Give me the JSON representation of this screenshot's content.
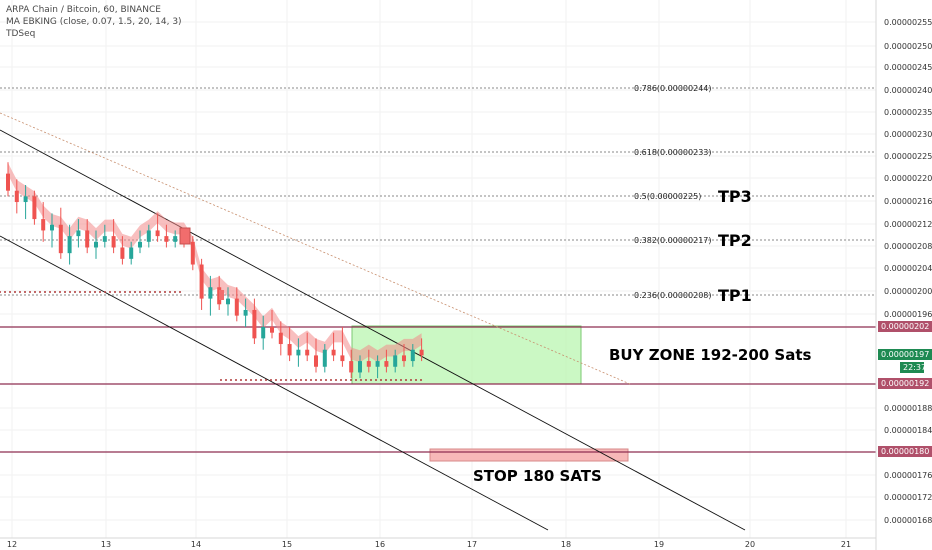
{
  "header": {
    "symbol_line": "ARPA Chain / Bitcoin, 60, BINANCE",
    "indicator_line": "MA EBKING (close, 0.07, 1.5, 20, 14, 3)",
    "tdseq_line": "TDSeq"
  },
  "chart_data": {
    "type": "candlestick",
    "x_ticks": [
      "12",
      "13",
      "14",
      "15",
      "16",
      "17",
      "18",
      "19",
      "20",
      "21"
    ],
    "y_ticks": [
      "0.00000255",
      "0.00000250",
      "0.00000245",
      "0.00000240",
      "0.00000235",
      "0.00000230",
      "0.00000225",
      "0.00000220",
      "0.00000216",
      "0.00000212",
      "0.00000208",
      "0.00000204",
      "0.00000200",
      "0.00000196",
      "0.00000188",
      "0.00000184",
      "0.00000176",
      "0.00000172",
      "0.00000168"
    ],
    "price_badges": [
      {
        "label": "0.00000202",
        "color": "#b0506a"
      },
      {
        "label": "0.00000197",
        "color": "#1e8a52"
      },
      {
        "label": "22:37",
        "color": "#1e8a52"
      },
      {
        "label": "0.00000192",
        "color": "#b0506a"
      },
      {
        "label": "0.00000180",
        "color": "#b0506a"
      }
    ],
    "fib_levels": [
      {
        "label": "0.786(0.00000244)"
      },
      {
        "label": "0.618(0.00000233)"
      },
      {
        "label": "0.5(0.00000225)"
      },
      {
        "label": "0.382(0.00000217)"
      },
      {
        "label": "0.236(0.00000208)"
      }
    ],
    "candles": [
      {
        "o": 229,
        "h": 231,
        "l": 225,
        "c": 226
      },
      {
        "o": 226,
        "h": 228,
        "l": 222,
        "c": 224
      },
      {
        "o": 224,
        "h": 227,
        "l": 221,
        "c": 225
      },
      {
        "o": 225,
        "h": 226,
        "l": 220,
        "c": 221
      },
      {
        "o": 221,
        "h": 224,
        "l": 217,
        "c": 219
      },
      {
        "o": 219,
        "h": 222,
        "l": 216,
        "c": 220
      },
      {
        "o": 220,
        "h": 223,
        "l": 214,
        "c": 215
      },
      {
        "o": 215,
        "h": 220,
        "l": 213,
        "c": 218
      },
      {
        "o": 218,
        "h": 221,
        "l": 216,
        "c": 219
      },
      {
        "o": 219,
        "h": 221,
        "l": 215,
        "c": 216
      },
      {
        "o": 216,
        "h": 219,
        "l": 214,
        "c": 217
      },
      {
        "o": 217,
        "h": 220,
        "l": 216,
        "c": 218
      },
      {
        "o": 218,
        "h": 221,
        "l": 215,
        "c": 216
      },
      {
        "o": 216,
        "h": 218,
        "l": 213,
        "c": 214
      },
      {
        "o": 214,
        "h": 217,
        "l": 213,
        "c": 216
      },
      {
        "o": 216,
        "h": 219,
        "l": 215,
        "c": 217
      },
      {
        "o": 217,
        "h": 220,
        "l": 216,
        "c": 219
      },
      {
        "o": 219,
        "h": 222,
        "l": 217,
        "c": 218
      },
      {
        "o": 218,
        "h": 220,
        "l": 216,
        "c": 217
      },
      {
        "o": 217,
        "h": 219,
        "l": 216,
        "c": 218
      },
      {
        "o": 218,
        "h": 219,
        "l": 216,
        "c": 217
      },
      {
        "o": 217,
        "h": 218,
        "l": 212,
        "c": 213
      },
      {
        "o": 213,
        "h": 214,
        "l": 205,
        "c": 207
      },
      {
        "o": 207,
        "h": 211,
        "l": 204,
        "c": 209
      },
      {
        "o": 209,
        "h": 211,
        "l": 205,
        "c": 206
      },
      {
        "o": 206,
        "h": 209,
        "l": 204,
        "c": 207
      },
      {
        "o": 207,
        "h": 209,
        "l": 203,
        "c": 204
      },
      {
        "o": 204,
        "h": 207,
        "l": 202,
        "c": 205
      },
      {
        "o": 205,
        "h": 207,
        "l": 199,
        "c": 200
      },
      {
        "o": 200,
        "h": 204,
        "l": 198,
        "c": 202
      },
      {
        "o": 202,
        "h": 205,
        "l": 200,
        "c": 201
      },
      {
        "o": 201,
        "h": 203,
        "l": 197,
        "c": 199
      },
      {
        "o": 199,
        "h": 202,
        "l": 196,
        "c": 197
      },
      {
        "o": 197,
        "h": 200,
        "l": 195,
        "c": 198
      },
      {
        "o": 198,
        "h": 201,
        "l": 196,
        "c": 197
      },
      {
        "o": 197,
        "h": 200,
        "l": 194,
        "c": 195
      },
      {
        "o": 195,
        "h": 199,
        "l": 194,
        "c": 198
      },
      {
        "o": 198,
        "h": 201,
        "l": 196,
        "c": 197
      },
      {
        "o": 197,
        "h": 202,
        "l": 195,
        "c": 196
      },
      {
        "o": 196,
        "h": 198,
        "l": 193,
        "c": 194
      },
      {
        "o": 194,
        "h": 197,
        "l": 193,
        "c": 196
      },
      {
        "o": 196,
        "h": 198,
        "l": 194,
        "c": 195
      },
      {
        "o": 195,
        "h": 197,
        "l": 193,
        "c": 196
      },
      {
        "o": 196,
        "h": 198,
        "l": 194,
        "c": 195
      },
      {
        "o": 195,
        "h": 198,
        "l": 194,
        "c": 197
      },
      {
        "o": 197,
        "h": 199,
        "l": 195,
        "c": 196
      },
      {
        "o": 196,
        "h": 199,
        "l": 195,
        "c": 198
      },
      {
        "o": 198,
        "h": 200,
        "l": 196,
        "c": 197
      }
    ],
    "annotations": {
      "tp3": "TP3",
      "tp2": "TP2",
      "tp1": "TP1",
      "buy_zone": "BUY ZONE 192-200 Sats",
      "stop": "STOP 180 SATS"
    },
    "colors": {
      "bull": "#26a69a",
      "bear": "#ef5350",
      "ma_band": "#f28b8b",
      "buy_zone": "#b9f5b0",
      "stop_zone": "#f7b8b8",
      "level_line": "#8e2f52"
    }
  }
}
